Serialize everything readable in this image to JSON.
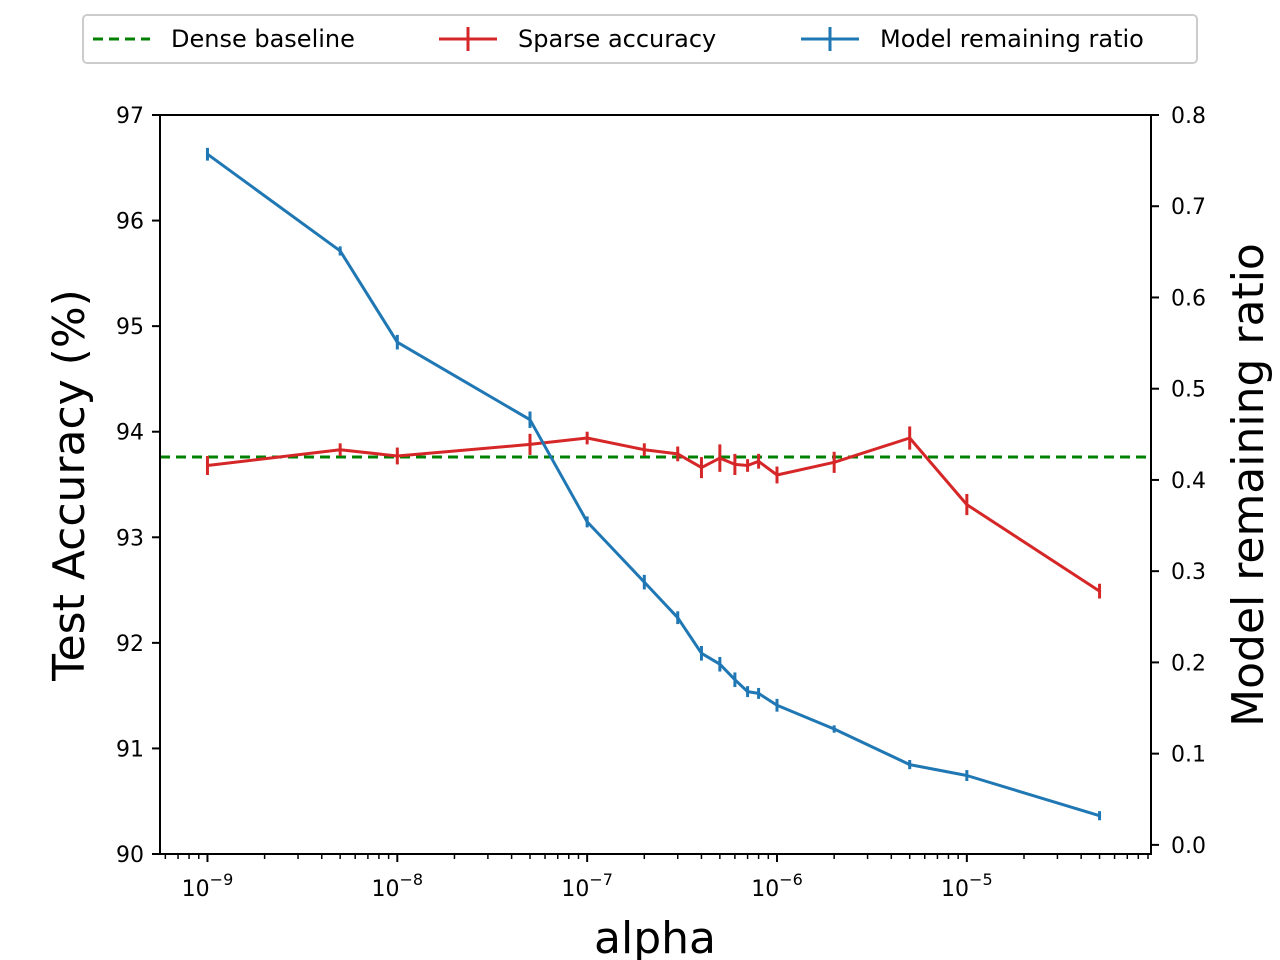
{
  "chart_data": {
    "type": "line",
    "xlabel": "alpha",
    "ylabel_left": "Test Accuracy (%)",
    "ylabel_right": "Model remaining ratio",
    "x_scale": "log",
    "x_tick_labels": [
      {
        "exp": -9,
        "base": "10",
        "sup": "−9"
      },
      {
        "exp": -8,
        "base": "10",
        "sup": "−8"
      },
      {
        "exp": -7,
        "base": "10",
        "sup": "−7"
      },
      {
        "exp": -6,
        "base": "10",
        "sup": "−6"
      },
      {
        "exp": -5,
        "base": "10",
        "sup": "−5"
      }
    ],
    "x_range_log10": [
      -9.25,
      -4.03
    ],
    "ylim_left": [
      90,
      97
    ],
    "yticks_left": [
      "90",
      "91",
      "92",
      "93",
      "94",
      "95",
      "96",
      "97"
    ],
    "ylim_right": [
      -0.01,
      0.8
    ],
    "yticks_right": [
      "0.0",
      "0.1",
      "0.2",
      "0.3",
      "0.4",
      "0.5",
      "0.6",
      "0.7",
      "0.8"
    ],
    "dense_baseline": 93.76,
    "legend": {
      "dense": "Dense baseline",
      "sparse": "Sparse accuracy",
      "ratio": "Model remaining ratio"
    },
    "colors": {
      "dense": "#008000",
      "sparse": "#d62728",
      "ratio": "#1f77b4"
    },
    "series": [
      {
        "name": "Sparse accuracy",
        "axis": "left",
        "x": [
          1e-09,
          5e-09,
          1e-08,
          5e-08,
          1e-07,
          2e-07,
          3e-07,
          4e-07,
          5e-07,
          6e-07,
          7e-07,
          8e-07,
          1e-06,
          2e-06,
          5e-06,
          1e-05,
          5e-05
        ],
        "y": [
          93.68,
          93.83,
          93.77,
          93.88,
          93.94,
          93.83,
          93.79,
          93.66,
          93.75,
          93.69,
          93.68,
          93.72,
          93.59,
          93.71,
          93.94,
          93.31,
          92.49
        ],
        "err": [
          0.09,
          0.06,
          0.08,
          0.1,
          0.06,
          0.06,
          0.07,
          0.1,
          0.13,
          0.1,
          0.06,
          0.07,
          0.08,
          0.1,
          0.11,
          0.1,
          0.07
        ]
      },
      {
        "name": "Model remaining ratio",
        "axis": "right",
        "x": [
          1e-09,
          5e-09,
          1e-08,
          5e-08,
          1e-07,
          2e-07,
          3e-07,
          4e-07,
          5e-07,
          6e-07,
          7e-07,
          8e-07,
          1e-06,
          2e-06,
          5e-06,
          1e-05,
          5e-05
        ],
        "y": [
          0.757,
          0.651,
          0.551,
          0.466,
          0.354,
          0.288,
          0.249,
          0.21,
          0.198,
          0.181,
          0.168,
          0.166,
          0.153,
          0.127,
          0.088,
          0.076,
          0.032
        ],
        "err": [
          0.007,
          0.005,
          0.008,
          0.009,
          0.006,
          0.008,
          0.007,
          0.008,
          0.008,
          0.008,
          0.006,
          0.006,
          0.007,
          0.004,
          0.005,
          0.006,
          0.005
        ]
      }
    ]
  }
}
